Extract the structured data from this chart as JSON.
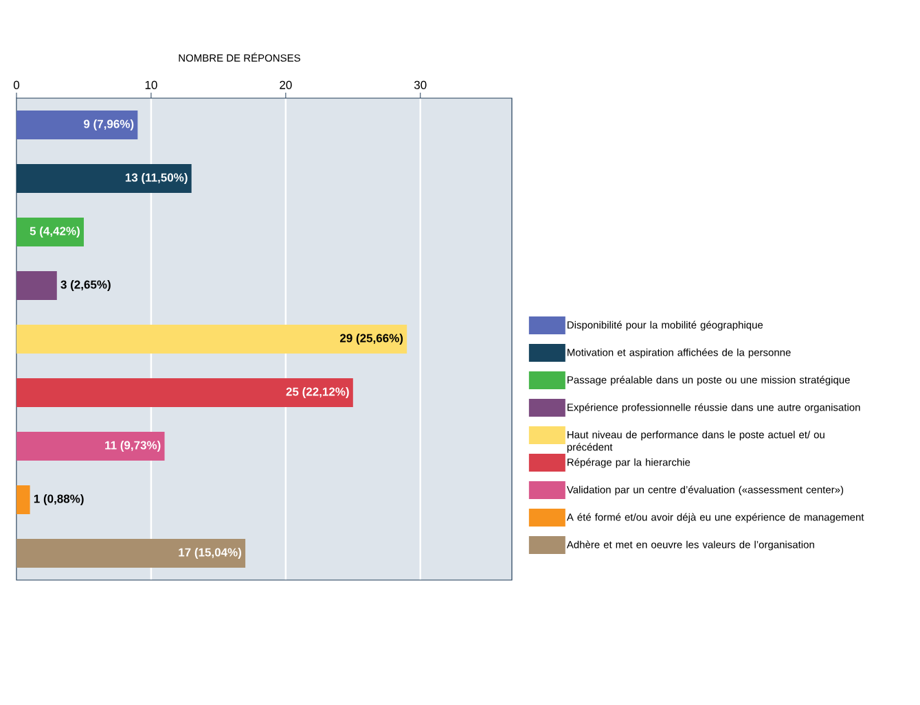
{
  "chart_data": {
    "type": "bar",
    "orientation": "horizontal",
    "xlabel": "NOMBRE DE RÉPONSES",
    "categories": [
      null,
      null,
      null,
      null,
      null,
      null,
      null,
      null,
      null
    ],
    "series": [
      {
        "name": "Disponibilité pour la mobilité géographique",
        "color": "#5a6bb8",
        "values": [
          9,
          null,
          null,
          null,
          null,
          null,
          null,
          null,
          null
        ],
        "value_labels": [
          "9 (7,96%)",
          null,
          null,
          null,
          null,
          null,
          null,
          null,
          null
        ]
      },
      {
        "name": "Motivation et aspiration affichées de la personne",
        "color": "#17445e",
        "values": [
          null,
          13,
          null,
          null,
          null,
          null,
          null,
          null,
          null
        ],
        "value_labels": [
          null,
          "13 (11,50%)",
          null,
          null,
          null,
          null,
          null,
          null,
          null
        ]
      },
      {
        "name": "Passage préalable dans un poste ou une mission stratégique",
        "color": "#45b549",
        "values": [
          null,
          null,
          5,
          null,
          null,
          null,
          null,
          null,
          null
        ],
        "value_labels": [
          null,
          null,
          "5 (4,42%)",
          null,
          null,
          null,
          null,
          null,
          null
        ]
      },
      {
        "name": "Expérience professionnelle réussie dans une autre organisation",
        "color": "#7b4a7f",
        "values": [
          null,
          null,
          null,
          3,
          null,
          null,
          null,
          null,
          null
        ],
        "value_labels": [
          null,
          null,
          null,
          "3 (2,65%)",
          null,
          null,
          null,
          null,
          null
        ]
      },
      {
        "name": "Haut niveau de performance dans le poste actuel et/ ou précédent",
        "color": "#fddd6a",
        "values": [
          null,
          null,
          null,
          null,
          29,
          null,
          null,
          null,
          null
        ],
        "value_labels": [
          null,
          null,
          null,
          null,
          "29 (25,66%)",
          null,
          null,
          null,
          null
        ]
      },
      {
        "name": "Répérage par la hierarchie",
        "color": "#d93f4b",
        "values": [
          null,
          null,
          null,
          null,
          null,
          25,
          null,
          null,
          null
        ],
        "value_labels": [
          null,
          null,
          null,
          null,
          null,
          "25 (22,12%)",
          null,
          null,
          null
        ]
      },
      {
        "name": "Validation par un centre d’évaluation («assessment center»)",
        "color": "#d8568a",
        "values": [
          null,
          null,
          null,
          null,
          null,
          null,
          11,
          null,
          null
        ],
        "value_labels": [
          null,
          null,
          null,
          null,
          null,
          null,
          "11 (9,73%)",
          null,
          null
        ]
      },
      {
        "name": "A été formé et/ou avoir déjà eu une expérience de management",
        "color": "#f7931e",
        "values": [
          null,
          null,
          null,
          null,
          null,
          null,
          null,
          1,
          null
        ],
        "value_labels": [
          null,
          null,
          null,
          null,
          null,
          null,
          null,
          "1 (0,88%)",
          null
        ]
      },
      {
        "name": "Adhère et met en oeuvre les valeurs de l’organisation",
        "color": "#a98f6e",
        "values": [
          null,
          null,
          null,
          null,
          null,
          null,
          null,
          null,
          17
        ],
        "value_labels": [
          null,
          null,
          null,
          null,
          null,
          null,
          null,
          null,
          "17 (15,04%)"
        ]
      }
    ],
    "xlim": [
      0,
      36.8
    ],
    "xticks": [
      0,
      10,
      20,
      30
    ],
    "grid": "x",
    "legend": "right"
  }
}
